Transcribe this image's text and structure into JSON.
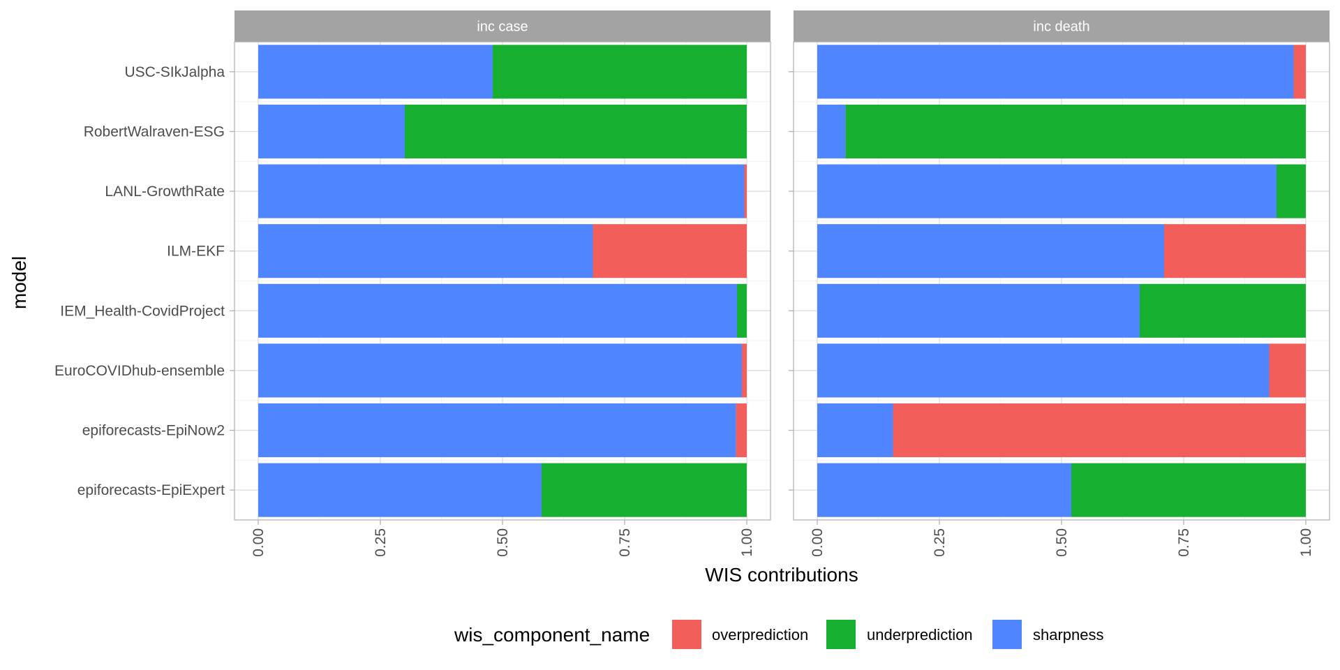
{
  "chart_data": {
    "type": "bar",
    "orientation": "horizontal",
    "stacked": true,
    "xlabel": "WIS contributions",
    "ylabel": "model",
    "xlim": [
      0,
      1
    ],
    "x_ticks": [
      "0.00",
      "0.25",
      "0.50",
      "0.75",
      "1.00"
    ],
    "grid": true,
    "legend_position": "bottom",
    "legend_title": "wis_component_name",
    "categories": [
      "USC-SIkJalpha",
      "RobertWalraven-ESG",
      "LANL-GrowthRate",
      "ILM-EKF",
      "IEM_Health-CovidProject",
      "EuroCOVIDhub-ensemble",
      "epiforecasts-EpiNow2",
      "epiforecasts-EpiExpert"
    ],
    "components": [
      {
        "name": "overprediction",
        "color": "#F25E5A"
      },
      {
        "name": "underprediction",
        "color": "#17AF2F"
      },
      {
        "name": "sharpness",
        "color": "#4F86FF"
      }
    ],
    "panels": [
      {
        "title": "inc case",
        "series": [
          {
            "name": "sharpness",
            "values": [
              0.48,
              0.3,
              0.995,
              0.685,
              0.98,
              0.99,
              0.978,
              0.58
            ]
          },
          {
            "name": "underprediction",
            "values": [
              0.52,
              0.7,
              0.0,
              0.0,
              0.02,
              0.0,
              0.0,
              0.42
            ]
          },
          {
            "name": "overprediction",
            "values": [
              0.0,
              0.0,
              0.005,
              0.315,
              0.0,
              0.01,
              0.022,
              0.0
            ]
          }
        ]
      },
      {
        "title": "inc death",
        "series": [
          {
            "name": "sharpness",
            "values": [
              0.975,
              0.058,
              0.94,
              0.71,
              0.66,
              0.925,
              0.155,
              0.52
            ]
          },
          {
            "name": "underprediction",
            "values": [
              0.0,
              0.942,
              0.06,
              0.0,
              0.34,
              0.0,
              0.0,
              0.48
            ]
          },
          {
            "name": "overprediction",
            "values": [
              0.025,
              0.0,
              0.0,
              0.29,
              0.0,
              0.075,
              0.845,
              0.0
            ]
          }
        ]
      }
    ]
  }
}
